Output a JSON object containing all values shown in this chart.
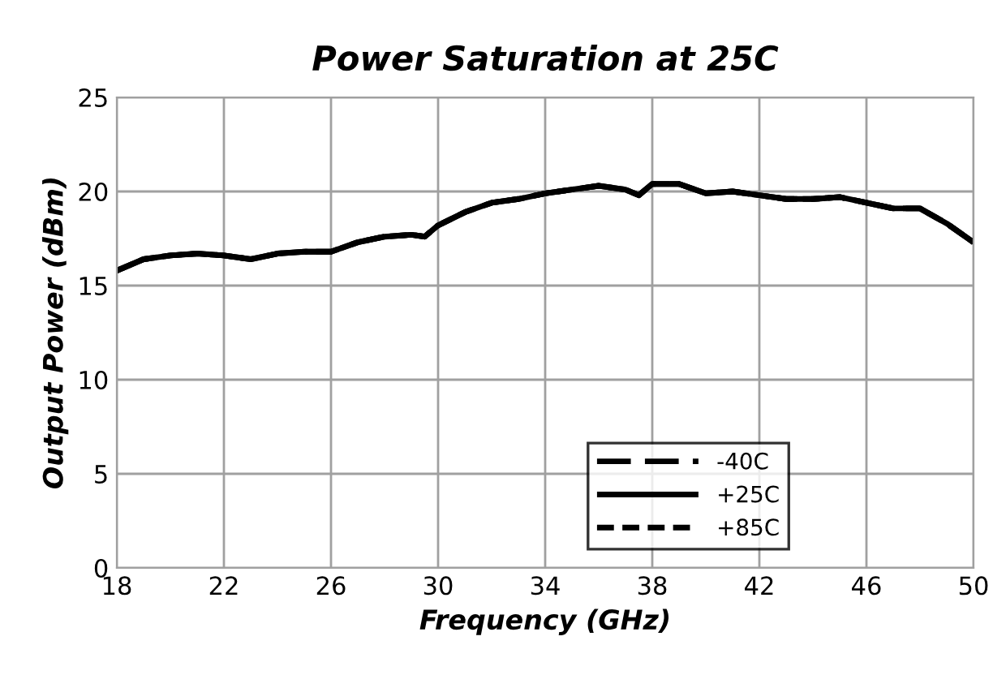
{
  "chart_data": {
    "type": "line",
    "title": "Power Saturation at 25C",
    "xlabel": "Frequency (GHz)",
    "ylabel": "Output Power (dBm)",
    "x": [
      18,
      19,
      20,
      21,
      22,
      23,
      24,
      25,
      26,
      27,
      28,
      29,
      29.5,
      30,
      31,
      32,
      33,
      34,
      35,
      36,
      37,
      37.5,
      38,
      39,
      40,
      41,
      42,
      43,
      44,
      45,
      46,
      47,
      48,
      49,
      50
    ],
    "series": [
      {
        "name": "-40C",
        "color": "#000000",
        "line_style": "dashed",
        "values": [
          15.8,
          16.4,
          16.6,
          16.7,
          16.6,
          16.4,
          16.7,
          16.8,
          16.8,
          17.3,
          17.6,
          17.7,
          17.6,
          18.2,
          18.9,
          19.4,
          19.6,
          19.9,
          20.1,
          20.3,
          20.1,
          19.8,
          20.4,
          20.4,
          19.9,
          20.0,
          19.8,
          19.6,
          19.6,
          19.7,
          19.4,
          19.1,
          19.1,
          18.3,
          17.3
        ]
      },
      {
        "name": "+25C",
        "color": "#000000",
        "line_style": "solid",
        "values": [
          15.8,
          16.4,
          16.6,
          16.7,
          16.6,
          16.4,
          16.7,
          16.8,
          16.8,
          17.3,
          17.6,
          17.7,
          17.6,
          18.2,
          18.9,
          19.4,
          19.6,
          19.9,
          20.1,
          20.3,
          20.1,
          19.8,
          20.4,
          20.4,
          19.9,
          20.0,
          19.8,
          19.6,
          19.6,
          19.7,
          19.4,
          19.1,
          19.1,
          18.3,
          17.3
        ]
      },
      {
        "name": "+85C",
        "color": "#000000",
        "line_style": "dotted",
        "values": [
          15.8,
          16.4,
          16.6,
          16.7,
          16.6,
          16.4,
          16.7,
          16.8,
          16.8,
          17.3,
          17.6,
          17.7,
          17.6,
          18.2,
          18.9,
          19.4,
          19.6,
          19.9,
          20.1,
          20.3,
          20.1,
          19.8,
          20.4,
          20.4,
          19.9,
          20.0,
          19.8,
          19.6,
          19.6,
          19.7,
          19.4,
          19.1,
          19.1,
          18.3,
          17.3
        ]
      }
    ],
    "xlim": [
      18,
      50
    ],
    "xticks": [
      18,
      22,
      26,
      30,
      34,
      38,
      42,
      46,
      50
    ],
    "ylim": [
      0,
      25
    ],
    "yticks": [
      0,
      5,
      10,
      15,
      20,
      25
    ],
    "grid": true,
    "legend": "bottom right",
    "marker": "none"
  }
}
